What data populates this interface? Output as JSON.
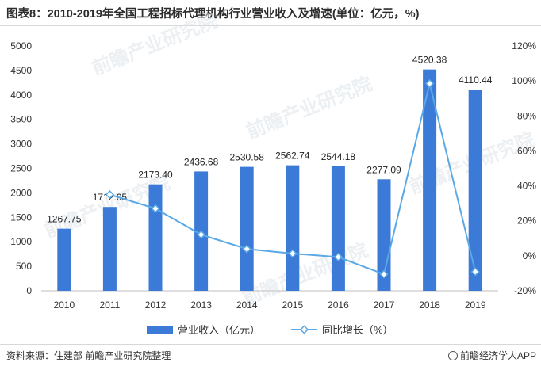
{
  "title": "图表8：2010-2019年全国工程招标代理机构行业营业收入及增速(单位：亿元，%)",
  "source": "资料来源：住建部 前瞻产业研究院整理",
  "brand": "前瞻经济学人APP",
  "watermark": "前瞻产业研究院",
  "colors": {
    "bar": "#3c7ad8",
    "line": "#5aa9e6",
    "axis_text": "#333333"
  },
  "chart_data": {
    "type": "bar+line",
    "categories": [
      "2010",
      "2011",
      "2012",
      "2013",
      "2014",
      "2015",
      "2016",
      "2017",
      "2018",
      "2019"
    ],
    "series": [
      {
        "name": "营业收入（亿元）",
        "type": "bar",
        "axis": "left",
        "values": [
          1267.75,
          1712.05,
          2173.4,
          2436.68,
          2530.58,
          2562.74,
          2544.18,
          2277.09,
          4520.38,
          4110.44
        ],
        "labels": [
          "1267.75",
          "1712.05",
          "2173.40",
          "2436.68",
          "2530.58",
          "2562.74",
          "2544.18",
          "2277.09",
          "4520.38",
          "4110.44"
        ]
      },
      {
        "name": "同比增长（%）",
        "type": "line",
        "axis": "right",
        "values": [
          null,
          35.0,
          27.0,
          12.1,
          3.9,
          1.3,
          -0.7,
          -10.5,
          98.5,
          -9.1
        ]
      }
    ],
    "y_left": {
      "min": 0,
      "max": 5000,
      "step": 500,
      "ticks": [
        "0",
        "500",
        "1000",
        "1500",
        "2000",
        "2500",
        "3000",
        "3500",
        "4000",
        "4500",
        "5000"
      ]
    },
    "y_right": {
      "min": -20,
      "max": 120,
      "step": 20,
      "ticks": [
        "-20%",
        "0%",
        "20%",
        "40%",
        "60%",
        "80%",
        "100%",
        "120%"
      ]
    },
    "grid": false,
    "legend_position": "bottom"
  }
}
